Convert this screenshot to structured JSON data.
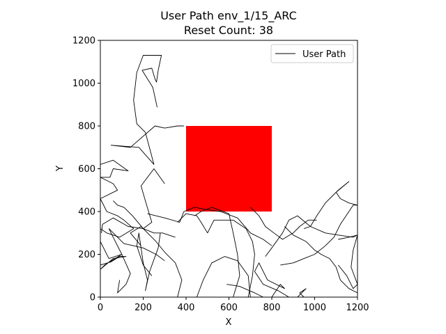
{
  "chart_data": {
    "type": "line",
    "title": "User Path env_1/15_ARC",
    "subtitle": "Reset Count: 38",
    "xlabel": "X",
    "ylabel": "Y",
    "xlim": [
      0,
      1200
    ],
    "ylim": [
      0,
      1200
    ],
    "xticks": [
      "0",
      "200",
      "400",
      "600",
      "800",
      "1000",
      "1200"
    ],
    "yticks": [
      "0",
      "200",
      "400",
      "600",
      "800",
      "1000",
      "1200"
    ],
    "legend": {
      "position": "top-right",
      "entries": [
        "User Path"
      ]
    },
    "grid": false,
    "series": [
      {
        "name": "User Path",
        "color": "#000000",
        "segments": [
          [
            [
              265,
              887
            ],
            [
              245,
              980
            ],
            [
              195,
              1060
            ],
            [
              240,
              1070
            ],
            [
              255,
              1020
            ],
            [
              262,
              1005
            ],
            [
              270,
              1060
            ],
            [
              285,
              1130
            ],
            [
              200,
              1130
            ],
            [
              170,
              1050
            ],
            [
              155,
              920
            ],
            [
              170,
              810
            ],
            [
              210,
              770
            ],
            [
              250,
              620
            ],
            [
              180,
              700
            ],
            [
              50,
              710
            ],
            [
              140,
              700
            ],
            [
              255,
              800
            ],
            [
              300,
              790
            ],
            [
              360,
              800
            ],
            [
              390,
              800
            ]
          ],
          [
            [
              0,
              620
            ],
            [
              60,
              640
            ],
            [
              130,
              590
            ],
            [
              60,
              600
            ],
            [
              45,
              560
            ],
            [
              0,
              560
            ],
            [
              60,
              530
            ],
            [
              80,
              500
            ],
            [
              0,
              460
            ],
            [
              30,
              400
            ],
            [
              80,
              380
            ],
            [
              110,
              360
            ],
            [
              155,
              320
            ],
            [
              90,
              280
            ],
            [
              30,
              300
            ],
            [
              0,
              320
            ]
          ],
          [
            [
              300,
              530
            ],
            [
              250,
              600
            ],
            [
              190,
              520
            ],
            [
              210,
              450
            ],
            [
              240,
              350
            ],
            [
              200,
              320
            ],
            [
              130,
              330
            ],
            [
              60,
              370
            ],
            [
              10,
              340
            ],
            [
              5,
              300
            ]
          ],
          [
            [
              0,
              260
            ],
            [
              40,
              180
            ],
            [
              100,
              200
            ],
            [
              20,
              150
            ],
            [
              0,
              130
            ],
            [
              60,
              180
            ],
            [
              120,
              190
            ],
            [
              90,
              190
            ],
            [
              50,
              165
            ],
            [
              0,
              150
            ]
          ],
          [
            [
              220,
              390
            ],
            [
              300,
              370
            ],
            [
              370,
              350
            ],
            [
              390,
              400
            ],
            [
              440,
              420
            ],
            [
              490,
              410
            ],
            [
              560,
              400
            ],
            [
              640,
              370
            ],
            [
              700,
              300
            ],
            [
              760,
              270
            ],
            [
              800,
              240
            ]
          ],
          [
            [
              190,
              240
            ],
            [
              140,
              300
            ],
            [
              190,
              330
            ],
            [
              230,
              290
            ],
            [
              260,
              260
            ],
            [
              300,
              210
            ],
            [
              350,
              160
            ],
            [
              380,
              80
            ],
            [
              360,
              0
            ]
          ],
          [
            [
              90,
              80
            ],
            [
              80,
              20
            ],
            [
              120,
              60
            ],
            [
              140,
              110
            ],
            [
              100,
              200
            ],
            [
              60,
              280
            ],
            [
              40,
              320
            ],
            [
              70,
              290
            ],
            [
              110,
              250
            ],
            [
              200,
              230
            ],
            [
              260,
              200
            ],
            [
              300,
              170
            ]
          ],
          [
            [
              240,
              100
            ],
            [
              200,
              150
            ],
            [
              170,
              240
            ],
            [
              180,
              300
            ],
            [
              200,
              160
            ],
            [
              220,
              80
            ],
            [
              210,
              30
            ],
            [
              230,
              120
            ],
            [
              270,
              230
            ],
            [
              280,
              300
            ]
          ],
          [
            [
              360,
              350
            ],
            [
              400,
              390
            ],
            [
              450,
              380
            ],
            [
              470,
              350
            ],
            [
              500,
              300
            ],
            [
              530,
              360
            ],
            [
              620,
              360
            ],
            [
              680,
              320
            ],
            [
              710,
              260
            ],
            [
              720,
              200
            ],
            [
              710,
              100
            ],
            [
              690,
              0
            ]
          ],
          [
            [
              450,
              0
            ],
            [
              480,
              80
            ],
            [
              520,
              160
            ],
            [
              580,
              190
            ],
            [
              640,
              170
            ],
            [
              690,
              100
            ],
            [
              700,
              0
            ]
          ],
          [
            [
              590,
              60
            ],
            [
              650,
              50
            ],
            [
              720,
              20
            ],
            [
              760,
              0
            ]
          ],
          [
            [
              800,
              0
            ],
            [
              840,
              60
            ],
            [
              860,
              40
            ],
            [
              780,
              80
            ],
            [
              740,
              160
            ],
            [
              720,
              120
            ],
            [
              760,
              60
            ],
            [
              830,
              30
            ],
            [
              880,
              0
            ]
          ],
          [
            [
              770,
              190
            ],
            [
              800,
              230
            ],
            [
              850,
              300
            ],
            [
              880,
              360
            ],
            [
              920,
              380
            ],
            [
              980,
              330
            ],
            [
              1050,
              300
            ],
            [
              1110,
              290
            ],
            [
              1180,
              280
            ],
            [
              1200,
              290
            ]
          ],
          [
            [
              840,
              150
            ],
            [
              900,
              160
            ],
            [
              950,
              180
            ],
            [
              1000,
              200
            ],
            [
              1050,
              240
            ],
            [
              1090,
              280
            ],
            [
              1120,
              340
            ],
            [
              1160,
              400
            ],
            [
              1180,
              430
            ],
            [
              1200,
              430
            ],
            [
              1160,
              440
            ],
            [
              1120,
              460
            ],
            [
              1100,
              490
            ],
            [
              1160,
              540
            ],
            [
              1110,
              500
            ],
            [
              1080,
              470
            ],
            [
              1050,
              440
            ],
            [
              1010,
              380
            ],
            [
              980,
              330
            ],
            [
              950,
              320
            ]
          ],
          [
            [
              860,
              330
            ],
            [
              900,
              290
            ],
            [
              960,
              260
            ],
            [
              1000,
              220
            ],
            [
              1030,
              200
            ],
            [
              1070,
              180
            ],
            [
              1100,
              140
            ],
            [
              1120,
              80
            ],
            [
              1160,
              40
            ],
            [
              1200,
              20
            ]
          ],
          [
            [
              1110,
              150
            ],
            [
              1150,
              100
            ],
            [
              1180,
              40
            ],
            [
              1200,
              60
            ],
            [
              1170,
              140
            ],
            [
              1180,
              220
            ],
            [
              1200,
              290
            ],
            [
              1160,
              280
            ],
            [
              1110,
              270
            ]
          ],
          [
            [
              950,
              0
            ],
            [
              930,
              20
            ],
            [
              960,
              40
            ],
            [
              920,
              0
            ]
          ],
          [
            [
              440,
              380
            ],
            [
              470,
              400
            ],
            [
              520,
              420
            ],
            [
              600,
              390
            ],
            [
              620,
              300
            ],
            [
              640,
              200
            ],
            [
              650,
              100
            ],
            [
              620,
              0
            ]
          ],
          [
            [
              60,
              450
            ],
            [
              80,
              430
            ],
            [
              110,
              420
            ],
            [
              150,
              380
            ],
            [
              200,
              320
            ],
            [
              250,
              300
            ],
            [
              290,
              300
            ],
            [
              350,
              280
            ]
          ],
          [
            [
              700,
              420
            ],
            [
              740,
              380
            ],
            [
              770,
              330
            ],
            [
              810,
              300
            ],
            [
              850,
              270
            ],
            [
              900,
              300
            ],
            [
              930,
              330
            ],
            [
              970,
              360
            ],
            [
              1010,
              360
            ]
          ]
        ]
      }
    ],
    "shapes": [
      {
        "kind": "rectangle",
        "x": [
          400,
          800
        ],
        "y": [
          400,
          800
        ],
        "color": "#ff0000"
      }
    ]
  }
}
